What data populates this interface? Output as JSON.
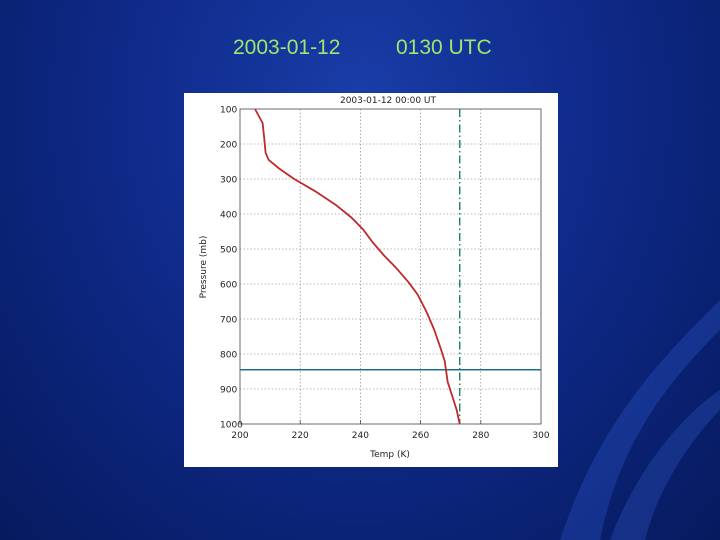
{
  "slide": {
    "title_date": "2003-01-12",
    "title_time": "0130 UTC",
    "title_color": "#9be86a",
    "background_color": "#0f2a8a"
  },
  "chart_data": {
    "type": "line",
    "title": "2003-01-12 00:00 UT",
    "xlabel": "Temp (K)",
    "ylabel": "Pressure (mb)",
    "xlim": [
      200,
      300
    ],
    "ylim": [
      100,
      1000
    ],
    "y_inverted": true,
    "grid": true,
    "x_ticks": [
      200,
      220,
      240,
      260,
      280,
      300
    ],
    "y_ticks": [
      100,
      200,
      300,
      400,
      500,
      600,
      700,
      800,
      900,
      1000
    ],
    "series": [
      {
        "color": "#c0282c",
        "style": "solid",
        "points": [
          [
            205.0,
            100
          ],
          [
            207.5,
            140
          ],
          [
            208.0,
            180
          ],
          [
            208.5,
            225
          ],
          [
            209.5,
            245
          ],
          [
            213.0,
            270
          ],
          [
            218.0,
            300
          ],
          [
            225.0,
            335
          ],
          [
            232.0,
            375
          ],
          [
            237.0,
            410
          ],
          [
            241.0,
            445
          ],
          [
            244.0,
            480
          ],
          [
            248.0,
            520
          ],
          [
            252.0,
            555
          ],
          [
            256.0,
            595
          ],
          [
            259.0,
            630
          ],
          [
            262.0,
            680
          ],
          [
            264.5,
            730
          ],
          [
            266.5,
            780
          ],
          [
            268.0,
            820
          ],
          [
            268.5,
            850
          ],
          [
            269.0,
            880
          ],
          [
            270.5,
            920
          ],
          [
            272.0,
            960
          ],
          [
            273.0,
            1000
          ]
        ]
      }
    ],
    "annotations": {
      "vertical_line": {
        "x": 273,
        "style": "dash-dot",
        "color": "#1e7f5a"
      },
      "horizontal_line": {
        "y": 845,
        "style": "solid",
        "color": "#1e6e8a"
      }
    }
  }
}
